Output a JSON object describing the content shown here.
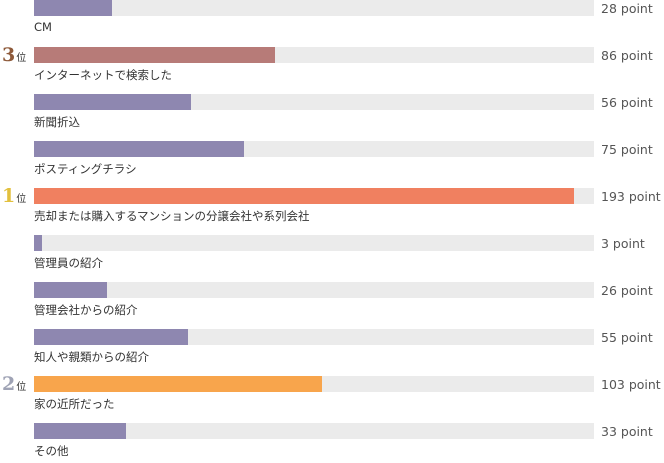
{
  "chart_data": {
    "type": "bar",
    "orientation": "horizontal",
    "xlim": [
      0,
      200
    ],
    "unit": "point",
    "rank_suffix": "位",
    "categories": [
      "CM",
      "インターネットで検索した",
      "新聞折込",
      "ポスティングチラシ",
      "売却または購入するマンションの分譲会社や系列会社",
      "管理員の紹介",
      "管理会社からの紹介",
      "知人や親類からの紹介",
      "家の近所だった",
      "その他"
    ],
    "values": [
      28,
      86,
      56,
      75,
      193,
      3,
      26,
      55,
      103,
      33
    ],
    "value_labels": [
      "28 point",
      "86 point",
      "56 point",
      "75 point",
      "193 point",
      "3 point",
      "26 point",
      "55 point",
      "103 point",
      "33 point"
    ],
    "ranks": [
      "",
      "3",
      "",
      "",
      "1",
      "",
      "",
      "",
      "2",
      ""
    ],
    "colors": {
      "default_bar": "#8e87b0",
      "rank1_bar": "#f08060",
      "rank2_bar": "#f8a54c",
      "rank3_bar": "#b77b78",
      "track": "#ebebeb",
      "rank1_num": "#e2c03e",
      "rank2_num": "#9fa3b5",
      "rank3_num": "#8e5a3a"
    }
  }
}
